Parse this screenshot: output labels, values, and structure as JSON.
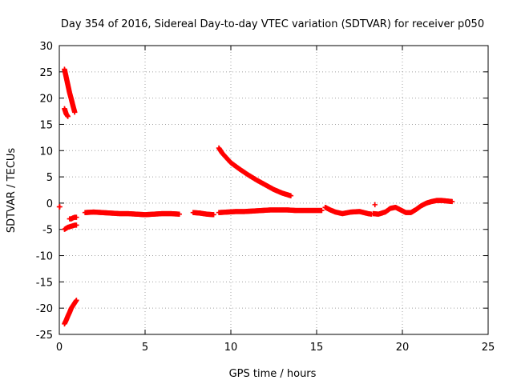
{
  "chart_data": {
    "type": "scatter",
    "title": "Day 354 of 2016, Sidereal Day-to-day VTEC variation (SDTVAR) for receiver p050",
    "xlabel": "GPS time / hours",
    "ylabel": "SDTVAR / TECUs",
    "xlim": [
      0,
      25
    ],
    "ylim": [
      -25,
      30
    ],
    "xticks": [
      "0",
      "5",
      "10",
      "15",
      "20",
      "25"
    ],
    "yticks": [
      "-25",
      "-20",
      "-15",
      "-10",
      "-5",
      "0",
      "5",
      "10",
      "15",
      "20",
      "25",
      "30"
    ],
    "grid": true,
    "marker": "plus",
    "color": "#ff0000",
    "series": [
      {
        "segments": [
          {
            "x": [
              0.0,
              0.03
            ],
            "y": [
              -0.7,
              -0.7
            ]
          },
          {
            "x": [
              0.3,
              0.4,
              0.5,
              0.6,
              0.7,
              0.8,
              0.9
            ],
            "y": [
              25.5,
              24.0,
              22.5,
              21.0,
              19.8,
              18.5,
              17.3
            ]
          },
          {
            "x": [
              0.3,
              0.4,
              0.5
            ],
            "y": [
              18.0,
              17.0,
              16.5
            ]
          },
          {
            "x": [
              0.3,
              0.4,
              0.5,
              0.6,
              0.7,
              0.8,
              0.9,
              1.0
            ],
            "y": [
              -5.0,
              -4.8,
              -4.6,
              -4.5,
              -4.4,
              -4.3,
              -4.2,
              -4.2
            ]
          },
          {
            "x": [
              0.6,
              0.7,
              0.8,
              0.9,
              1.0
            ],
            "y": [
              -3.0,
              -3.0,
              -2.8,
              -2.7,
              -2.7
            ]
          },
          {
            "x": [
              0.3,
              0.4,
              0.5,
              0.6,
              0.7,
              0.8,
              0.9,
              1.0
            ],
            "y": [
              -23.0,
              -22.3,
              -21.5,
              -20.8,
              -20.0,
              -19.5,
              -19.0,
              -18.5
            ]
          },
          {
            "x": [
              1.5,
              2.0,
              2.5,
              3.0,
              3.5,
              4.0,
              4.5,
              5.0,
              5.5,
              6.0,
              6.5,
              7.0
            ],
            "y": [
              -1.8,
              -1.7,
              -1.8,
              -1.9,
              -2.0,
              -2.0,
              -2.1,
              -2.2,
              -2.1,
              -2.0,
              -2.0,
              -2.1
            ]
          },
          {
            "x": [
              7.8,
              8.2,
              8.6,
              9.0
            ],
            "y": [
              -1.8,
              -1.9,
              -2.1,
              -2.2
            ]
          },
          {
            "x": [
              9.3,
              9.5,
              10.0,
              10.5,
              11.0,
              11.5,
              12.0,
              12.5,
              13.0,
              13.5
            ],
            "y": [
              10.5,
              9.5,
              7.7,
              6.5,
              5.4,
              4.4,
              3.5,
              2.6,
              1.9,
              1.4
            ]
          },
          {
            "x": [
              9.3,
              9.8,
              10.3,
              10.8,
              11.3,
              11.8,
              12.3,
              12.8,
              13.3,
              13.8,
              14.3,
              14.8,
              15.3
            ],
            "y": [
              -1.8,
              -1.7,
              -1.6,
              -1.6,
              -1.5,
              -1.4,
              -1.3,
              -1.3,
              -1.3,
              -1.4,
              -1.4,
              -1.4,
              -1.4
            ]
          },
          {
            "x": [
              15.5,
              15.8,
              16.1,
              16.5,
              17.0,
              17.5,
              18.0,
              18.2
            ],
            "y": [
              -0.8,
              -1.3,
              -1.7,
              -2.0,
              -1.7,
              -1.6,
              -2.0,
              -2.1
            ]
          },
          {
            "x": [
              18.3,
              18.6,
              19.0,
              19.3,
              19.6,
              19.9,
              20.2,
              20.5,
              20.8,
              21.1,
              21.4,
              21.7,
              22.0,
              22.3,
              22.6,
              22.9
            ],
            "y": [
              -2.0,
              -2.1,
              -1.7,
              -1.0,
              -0.8,
              -1.3,
              -1.8,
              -1.8,
              -1.2,
              -0.5,
              0.0,
              0.3,
              0.5,
              0.5,
              0.4,
              0.3
            ]
          },
          {
            "x": [
              18.4
            ],
            "y": [
              -0.3
            ]
          }
        ]
      }
    ]
  }
}
